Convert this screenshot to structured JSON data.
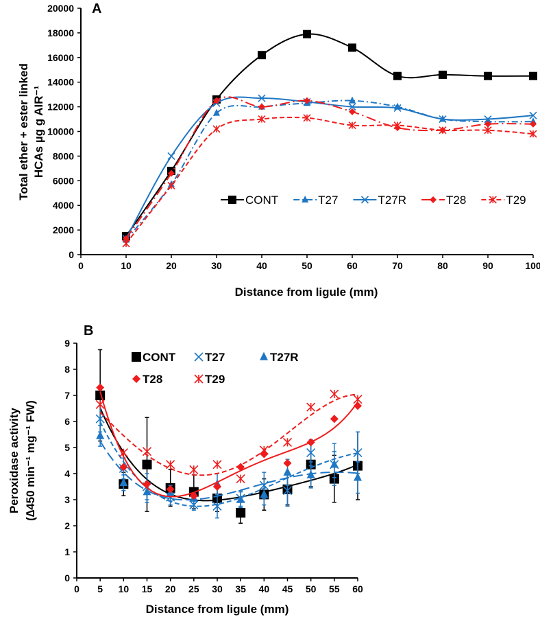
{
  "colors": {
    "black": "#000000",
    "blue": "#1f77c4",
    "red": "#ee1c1c"
  },
  "chart_data": [
    {
      "type": "line",
      "panel_label": "A",
      "title": "",
      "xlabel": "Distance from  ligule (mm)",
      "ylabel_lines": [
        "Total ether + ester linked",
        "HCAs  µg g AIR⁻¹"
      ],
      "xlim": [
        0,
        100
      ],
      "ylim": [
        0,
        20000
      ],
      "xticks": [
        0,
        10,
        20,
        30,
        40,
        50,
        60,
        70,
        80,
        90,
        100
      ],
      "yticks": [
        0,
        2000,
        4000,
        6000,
        8000,
        10000,
        12000,
        14000,
        16000,
        18000,
        20000
      ],
      "grid": false,
      "legend_position": "center-right",
      "x": [
        10,
        20,
        30,
        40,
        50,
        60,
        70,
        80,
        90,
        100
      ],
      "series": [
        {
          "name": "CONT",
          "color": "#000000",
          "marker": "square",
          "dash": "solid",
          "values": [
            1500,
            6800,
            12600,
            16200,
            17900,
            16800,
            14500,
            14600,
            14500,
            14500
          ]
        },
        {
          "name": "T27",
          "color": "#1f77c4",
          "marker": "triangle",
          "dash": "dashdot",
          "values": [
            1200,
            5700,
            11500,
            12000,
            12300,
            12500,
            12000,
            11000,
            10800,
            10800
          ]
        },
        {
          "name": "T27R",
          "color": "#1f77c4",
          "marker": "x",
          "dash": "solid",
          "values": [
            1300,
            8000,
            12300,
            12700,
            12400,
            12000,
            11900,
            11000,
            11000,
            11300
          ]
        },
        {
          "name": "T28",
          "color": "#ee1c1c",
          "marker": "diamond",
          "dash": "longdashdot",
          "values": [
            1300,
            6600,
            12500,
            12000,
            12500,
            11600,
            10300,
            10100,
            10600,
            10600
          ]
        },
        {
          "name": "T29",
          "color": "#ee1c1c",
          "marker": "star",
          "dash": "dash",
          "values": [
            900,
            5600,
            10200,
            11000,
            11100,
            10500,
            10500,
            10100,
            10100,
            9800
          ]
        }
      ]
    },
    {
      "type": "scatter",
      "panel_label": "B",
      "title": "",
      "xlabel": "Distance from  ligule (mm)",
      "ylabel_lines": [
        "Peroxidase activity",
        "(∆450 min⁻¹ mg⁻¹ FW)"
      ],
      "xlim": [
        0,
        60
      ],
      "ylim": [
        0,
        9
      ],
      "xticks": [
        0,
        5,
        10,
        15,
        20,
        25,
        30,
        35,
        40,
        45,
        50,
        55,
        60
      ],
      "yticks": [
        0,
        1,
        2,
        3,
        4,
        5,
        6,
        7,
        8,
        9
      ],
      "grid": false,
      "legend_position": "top",
      "trendline": "polynomial",
      "x": [
        5,
        10,
        15,
        20,
        25,
        30,
        35,
        40,
        45,
        50,
        55,
        60
      ],
      "series": [
        {
          "name": "CONT",
          "color": "#000000",
          "marker": "square",
          "dash": "solid",
          "values": [
            7.0,
            3.6,
            4.35,
            3.45,
            3.3,
            3.05,
            2.5,
            3.2,
            3.4,
            4.35,
            3.8,
            4.3
          ],
          "errors": [
            1.75,
            0.45,
            1.8,
            0.7,
            0.65,
            0.5,
            0.4,
            0.6,
            0.6,
            0.85,
            0.9,
            1.3
          ]
        },
        {
          "name": "T27",
          "color": "#1f77c4",
          "marker": "x",
          "dash": "dash",
          "values": [
            6.1,
            4.2,
            3.5,
            3.1,
            2.8,
            2.75,
            3.05,
            3.55,
            3.35,
            4.8,
            4.35,
            4.8
          ],
          "errors": [
            0.5,
            0.4,
            0.5,
            0.3,
            0.2,
            0.45,
            0.3,
            0.5,
            0.6,
            0.5,
            0.8,
            0.8
          ]
        },
        {
          "name": "T27R",
          "color": "#1f77c4",
          "marker": "triangle",
          "dash": "longdash",
          "values": [
            5.45,
            3.65,
            3.3,
            3.25,
            3.05,
            3.6,
            3.0,
            3.2,
            4.05,
            3.95,
            4.35,
            3.85
          ],
          "errors": [
            0.4,
            0.3,
            0.4,
            0.3,
            0.2,
            0.4,
            0.3,
            0.4,
            0.5,
            0.5,
            0.5,
            0.6
          ]
        },
        {
          "name": "T28",
          "color": "#ee1c1c",
          "marker": "diamond",
          "dash": "solid",
          "values": [
            7.3,
            4.25,
            3.6,
            3.4,
            3.15,
            3.5,
            4.25,
            4.75,
            4.4,
            5.2,
            6.1,
            6.6
          ],
          "errors": []
        },
        {
          "name": "T29",
          "color": "#ee1c1c",
          "marker": "star",
          "dash": "dash",
          "values": [
            6.65,
            4.8,
            4.85,
            4.35,
            4.15,
            4.35,
            3.8,
            4.9,
            5.2,
            6.55,
            7.05,
            6.85
          ],
          "errors": []
        }
      ]
    }
  ]
}
